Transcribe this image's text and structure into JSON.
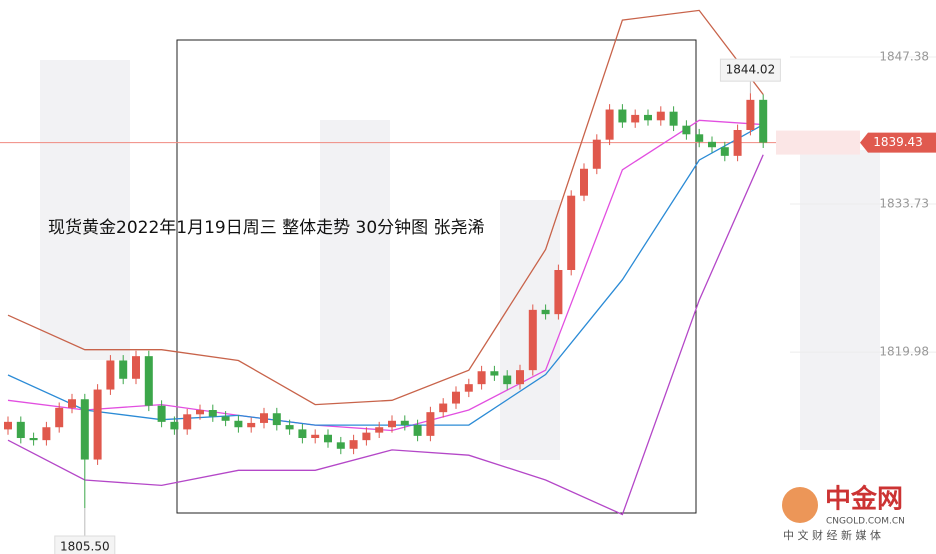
{
  "chart_data": {
    "type": "candlestick",
    "title": "现货黄金2022年1月19日周三  整体走势 30分钟图 张尧浠",
    "open": [
      1812.8,
      1813.5,
      1812.0,
      1811.8,
      1813.0,
      1814.8,
      1815.6,
      1810.0,
      1816.5,
      1819.2,
      1817.5,
      1819.6,
      1815.0,
      1813.5,
      1812.8,
      1814.2,
      1814.6,
      1814.0,
      1813.6,
      1813.0,
      1813.4,
      1814.3,
      1813.2,
      1812.8,
      1812.0,
      1812.3,
      1811.6,
      1811.0,
      1811.8,
      1812.5,
      1813.0,
      1813.6,
      1813.2,
      1812.2,
      1814.4,
      1815.2,
      1816.3,
      1817.0,
      1818.2,
      1817.8,
      1817.0,
      1818.3,
      1823.9,
      1823.5,
      1827.6,
      1834.5,
      1837.0,
      1839.7,
      1842.5,
      1841.3,
      1842.0,
      1841.5,
      1842.3,
      1841.0,
      1840.2,
      1839.5,
      1839.0,
      1838.2,
      1840.6,
      1843.4
    ],
    "high": [
      1814.0,
      1814.0,
      1812.5,
      1813.5,
      1815.3,
      1816.1,
      1816.1,
      1817.0,
      1819.7,
      1819.7,
      1820.1,
      1820.1,
      1815.5,
      1814.0,
      1814.7,
      1815.1,
      1815.1,
      1814.5,
      1814.1,
      1813.9,
      1814.8,
      1814.8,
      1813.7,
      1813.3,
      1812.8,
      1812.8,
      1812.1,
      1812.3,
      1813.0,
      1813.5,
      1814.1,
      1814.1,
      1813.7,
      1814.9,
      1815.7,
      1816.8,
      1817.5,
      1818.7,
      1818.7,
      1818.3,
      1818.8,
      1824.4,
      1824.4,
      1828.1,
      1835.0,
      1837.5,
      1840.2,
      1843.0,
      1843.0,
      1842.5,
      1842.5,
      1842.8,
      1842.8,
      1841.5,
      1840.7,
      1840.0,
      1839.5,
      1841.1,
      1844.02,
      1843.9
    ],
    "low": [
      1812.3,
      1811.5,
      1811.3,
      1811.3,
      1812.5,
      1814.3,
      1805.5,
      1809.5,
      1816.0,
      1817.0,
      1817.0,
      1814.5,
      1813.0,
      1812.3,
      1812.3,
      1813.7,
      1813.5,
      1813.1,
      1812.5,
      1812.5,
      1812.9,
      1812.7,
      1812.3,
      1811.5,
      1811.5,
      1811.1,
      1810.5,
      1810.5,
      1811.3,
      1812.0,
      1812.5,
      1812.7,
      1811.7,
      1811.7,
      1813.9,
      1814.7,
      1815.8,
      1816.5,
      1817.3,
      1816.5,
      1816.5,
      1817.8,
      1823.0,
      1823.0,
      1827.1,
      1834.0,
      1836.5,
      1839.2,
      1840.8,
      1840.8,
      1841.0,
      1841.0,
      1840.5,
      1839.7,
      1839.0,
      1838.5,
      1837.7,
      1837.7,
      1840.1,
      1838.93
    ],
    "close": [
      1813.5,
      1812.0,
      1811.8,
      1813.0,
      1814.8,
      1815.6,
      1810.0,
      1816.5,
      1819.2,
      1817.5,
      1819.6,
      1815.0,
      1813.5,
      1812.8,
      1814.2,
      1814.6,
      1814.0,
      1813.6,
      1813.0,
      1813.4,
      1814.3,
      1813.2,
      1812.8,
      1812.0,
      1812.3,
      1811.6,
      1811.0,
      1811.8,
      1812.5,
      1813.0,
      1813.6,
      1813.2,
      1812.2,
      1814.4,
      1815.2,
      1816.3,
      1817.0,
      1818.2,
      1817.8,
      1817.0,
      1818.3,
      1823.9,
      1823.5,
      1827.6,
      1834.5,
      1837.0,
      1839.7,
      1842.5,
      1841.3,
      1842.0,
      1841.5,
      1842.3,
      1841.0,
      1840.2,
      1839.5,
      1839.0,
      1838.2,
      1840.6,
      1843.4,
      1839.43
    ],
    "up_color": "#e0584c",
    "down_color": "#3ca64a",
    "lines": [
      {
        "color": "#c8634a",
        "x": [
          0,
          6,
          12,
          18,
          24,
          30,
          36,
          42,
          48,
          54,
          59
        ],
        "values": [
          1823.4,
          1820.2,
          1820.2,
          1819.2,
          1815.1,
          1815.5,
          1818.3,
          1829.5,
          1850.8,
          1851.7,
          1843.9
        ]
      },
      {
        "color": "#b447c8",
        "x": [
          0,
          6,
          12,
          18,
          24,
          30,
          36,
          42,
          48,
          54,
          59
        ],
        "values": [
          1811.8,
          1808.1,
          1807.6,
          1809.0,
          1809.0,
          1810.9,
          1810.4,
          1808.1,
          1804.9,
          1824.8,
          1838.3
        ]
      },
      {
        "color": "#e24fe0",
        "x": [
          0,
          6,
          12,
          18,
          24,
          30,
          36,
          42,
          48,
          54,
          59
        ],
        "values": [
          1815.5,
          1814.6,
          1815.1,
          1814.1,
          1813.2,
          1812.7,
          1814.6,
          1818.3,
          1836.9,
          1841.5,
          1841.1
        ]
      },
      {
        "color": "#2b8bd6",
        "x": [
          0,
          6,
          12,
          18,
          24,
          30,
          36,
          42,
          48,
          54,
          59
        ],
        "values": [
          1817.85,
          1814.6,
          1813.7,
          1814.1,
          1813.2,
          1813.2,
          1813.2,
          1817.9,
          1826.7,
          1837.8,
          1841.1
        ]
      }
    ],
    "ylim": [
      1801.23,
      1852.67
    ],
    "yticks": [
      1847.38,
      1833.73,
      1819.98
    ],
    "last_price": 1839.43,
    "last_price_label": "1839.43",
    "annotations": [
      {
        "label": "1844.02",
        "value": 1844.02,
        "index": 58
      },
      {
        "label": "1805.50",
        "value": 1805.5,
        "index": 6
      }
    ],
    "watermark": {
      "brand": "中金网",
      "site": "CNGOLD.COM.CN",
      "slogan": "中 文 财 经 新 媒 体"
    }
  }
}
